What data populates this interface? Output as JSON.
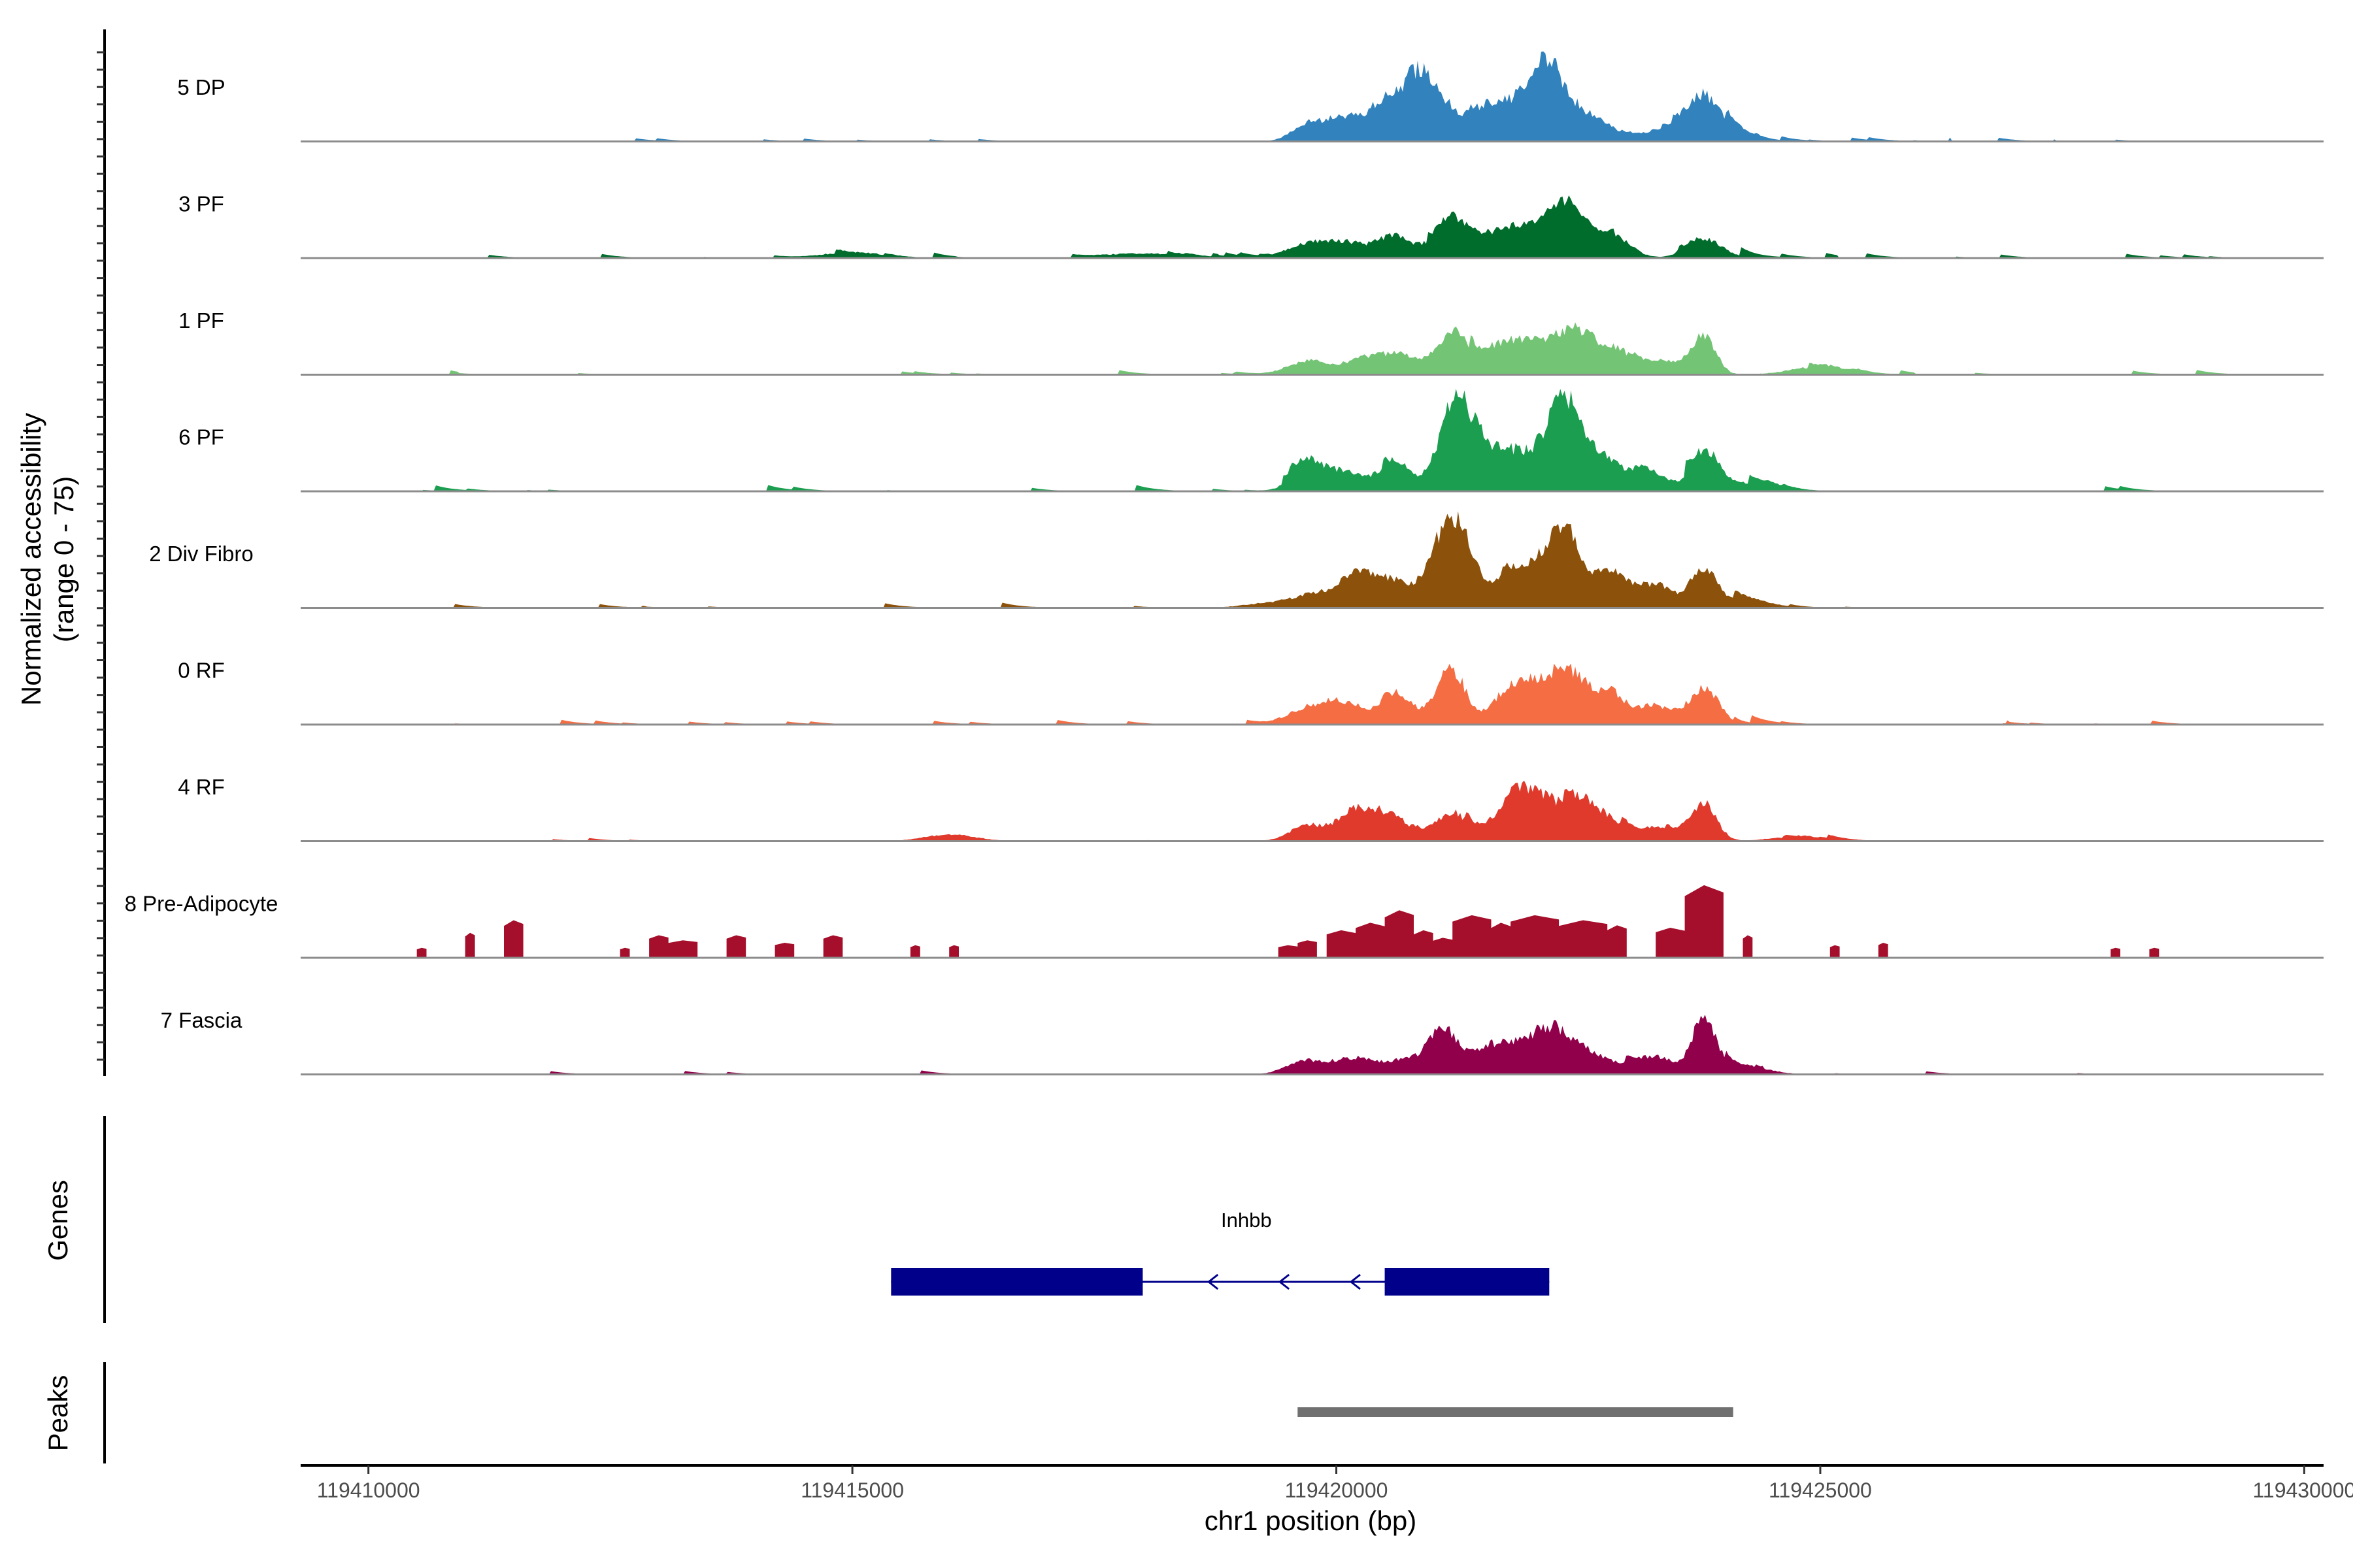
{
  "chart_data": {
    "type": "area",
    "title": "",
    "ylabel_line1": "Normalized accessibility",
    "ylabel_line2": "(range 0 - 75)",
    "y_range": [
      0,
      75
    ],
    "xlabel": "chr1 position (bp)",
    "xlim": [
      119409300,
      119430200
    ],
    "x_ticks": [
      119410000,
      119415000,
      119420000,
      119425000,
      119430000
    ],
    "x_tick_labels": [
      "119410000",
      "119415000",
      "119420000",
      "119425000",
      "119430000"
    ],
    "signal_span": [
      119410500,
      119429200
    ],
    "series": [
      {
        "name": "5 DP",
        "color": "#3182bd",
        "seed": 11,
        "scale": 0.62,
        "noise": 0.045,
        "peaks": [
          [
            119419700,
            14,
            160
          ],
          [
            119420100,
            22,
            200
          ],
          [
            119420500,
            30,
            150
          ],
          [
            119420850,
            47,
            170
          ],
          [
            119421100,
            23,
            220
          ],
          [
            119421600,
            26,
            200
          ],
          [
            119422000,
            34,
            200
          ],
          [
            119422200,
            38,
            140
          ],
          [
            119422500,
            27,
            260
          ],
          [
            119423400,
            10,
            300
          ],
          [
            119423800,
            33,
            160
          ],
          [
            119424100,
            8,
            200
          ]
        ]
      },
      {
        "name": "3 PF",
        "color": "#006d2c",
        "seed": 23,
        "scale": 0.62,
        "noise": 0.055,
        "peaks": [
          [
            119419700,
            12,
            200
          ],
          [
            119420100,
            13,
            200
          ],
          [
            119420600,
            20,
            180
          ],
          [
            119421200,
            33,
            180
          ],
          [
            119421700,
            22,
            220
          ],
          [
            119422100,
            26,
            200
          ],
          [
            119422400,
            40,
            150
          ],
          [
            119422800,
            24,
            200
          ],
          [
            119423800,
            16,
            180
          ],
          [
            119415000,
            5,
            300
          ],
          [
            119418000,
            4,
            400
          ]
        ]
      },
      {
        "name": "1 PF",
        "color": "#74c476",
        "seed": 37,
        "scale": 0.62,
        "noise": 0.05,
        "peaks": [
          [
            119419700,
            12,
            200
          ],
          [
            119420300,
            14,
            220
          ],
          [
            119420700,
            15,
            200
          ],
          [
            119421200,
            38,
            150
          ],
          [
            119421700,
            24,
            220
          ],
          [
            119422100,
            25,
            200
          ],
          [
            119422500,
            35,
            180
          ],
          [
            119422900,
            20,
            180
          ],
          [
            119423400,
            12,
            200
          ],
          [
            119423800,
            34,
            120
          ],
          [
            119425000,
            7,
            300
          ]
        ]
      },
      {
        "name": "6 PF",
        "color": "#1b9e4f",
        "seed": 41,
        "scale": 0.62,
        "noise": 0.065,
        "peaks": [
          [
            119419700,
            22,
            160
          ],
          [
            119420100,
            17,
            200
          ],
          [
            119420600,
            25,
            150
          ],
          [
            119421200,
            53,
            170
          ],
          [
            119421400,
            38,
            180
          ],
          [
            119421800,
            33,
            180
          ],
          [
            119422200,
            42,
            160
          ],
          [
            119422400,
            55,
            140
          ],
          [
            119422700,
            32,
            180
          ],
          [
            119423200,
            20,
            200
          ],
          [
            119423800,
            30,
            140
          ],
          [
            119424300,
            6,
            250
          ]
        ]
      },
      {
        "name": "2 Div Fibro",
        "color": "#8c510a",
        "seed": 53,
        "scale": 0.62,
        "noise": 0.05,
        "peaks": [
          [
            119419400,
            5,
            300
          ],
          [
            119419800,
            10,
            200
          ],
          [
            119420200,
            28,
            170
          ],
          [
            119420600,
            22,
            170
          ],
          [
            119421100,
            53,
            170
          ],
          [
            119421300,
            45,
            150
          ],
          [
            119421800,
            30,
            200
          ],
          [
            119422200,
            38,
            170
          ],
          [
            119422400,
            48,
            140
          ],
          [
            119422800,
            30,
            180
          ],
          [
            119423300,
            20,
            200
          ],
          [
            119423800,
            30,
            130
          ],
          [
            119424200,
            6,
            250
          ]
        ]
      },
      {
        "name": "0 RF",
        "color": "#f46d43",
        "seed": 67,
        "scale": 0.62,
        "noise": 0.045,
        "peaks": [
          [
            119419700,
            14,
            200
          ],
          [
            119420100,
            18,
            200
          ],
          [
            119420600,
            26,
            150
          ],
          [
            119421000,
            9,
            200
          ],
          [
            119421200,
            44,
            140
          ],
          [
            119421800,
            30,
            180
          ],
          [
            119422100,
            26,
            180
          ],
          [
            119422400,
            42,
            170
          ],
          [
            119422800,
            26,
            180
          ],
          [
            119423300,
            16,
            180
          ],
          [
            119423800,
            32,
            150
          ]
        ]
      },
      {
        "name": "4 RF",
        "color": "#e03a2d",
        "seed": 79,
        "scale": 0.62,
        "noise": 0.045,
        "peaks": [
          [
            119419700,
            14,
            180
          ],
          [
            119420200,
            28,
            180
          ],
          [
            119420600,
            18,
            180
          ],
          [
            119421200,
            25,
            170
          ],
          [
            119421800,
            32,
            170
          ],
          [
            119422100,
            36,
            180
          ],
          [
            119422500,
            30,
            170
          ],
          [
            119422800,
            16,
            200
          ],
          [
            119423400,
            12,
            200
          ],
          [
            119423800,
            32,
            130
          ],
          [
            119416000,
            6,
            250
          ],
          [
            119424800,
            4,
            300
          ]
        ]
      },
      {
        "name": "8 Pre-Adipocyte",
        "color": "#a50f2b",
        "seed": 91,
        "scale": 0.66,
        "noise": 0.0,
        "blocks": [
          [
            119410500,
            119410600,
            8
          ],
          [
            119411000,
            119411100,
            20
          ],
          [
            119411400,
            119411600,
            30
          ],
          [
            119412600,
            119412700,
            8
          ],
          [
            119412900,
            119413100,
            18
          ],
          [
            119413100,
            119413400,
            14
          ],
          [
            119413700,
            119413900,
            18
          ],
          [
            119414200,
            119414400,
            12
          ],
          [
            119414700,
            119414900,
            18
          ],
          [
            119415600,
            119415700,
            10
          ],
          [
            119416000,
            119416100,
            10
          ],
          [
            119419400,
            119419600,
            10
          ],
          [
            119419600,
            119419800,
            14
          ],
          [
            119419900,
            119420200,
            22
          ],
          [
            119420200,
            119420500,
            28
          ],
          [
            119420500,
            119420800,
            38
          ],
          [
            119420800,
            119421000,
            22
          ],
          [
            119421000,
            119421200,
            16
          ],
          [
            119421200,
            119421600,
            34
          ],
          [
            119421600,
            119421800,
            28
          ],
          [
            119421800,
            119422300,
            34
          ],
          [
            119422300,
            119422800,
            30
          ],
          [
            119422800,
            119423000,
            26
          ],
          [
            119423300,
            119423600,
            24
          ],
          [
            119423600,
            119424000,
            58
          ],
          [
            119424200,
            119424300,
            18
          ],
          [
            119425100,
            119425200,
            10
          ],
          [
            119425600,
            119425700,
            12
          ],
          [
            119428000,
            119428100,
            8
          ],
          [
            119428400,
            119428500,
            8
          ]
        ]
      },
      {
        "name": "7 Fascia",
        "color": "#91004b",
        "seed": 103,
        "scale": 0.62,
        "noise": 0.04,
        "peaks": [
          [
            119419700,
            12,
            200
          ],
          [
            119420200,
            14,
            200
          ],
          [
            119420700,
            12,
            200
          ],
          [
            119421100,
            38,
            150
          ],
          [
            119421600,
            24,
            200
          ],
          [
            119422000,
            22,
            200
          ],
          [
            119422300,
            32,
            200
          ],
          [
            119422700,
            14,
            200
          ],
          [
            119423300,
            14,
            200
          ],
          [
            119423800,
            50,
            120
          ],
          [
            119424200,
            6,
            250
          ]
        ]
      }
    ],
    "genes": [
      {
        "name": "Inhbb",
        "strand": "-",
        "start": 119415400,
        "end": 119422200,
        "exons": [
          [
            119415400,
            119418000
          ],
          [
            119420500,
            119422200
          ]
        ]
      }
    ],
    "peaks": [
      [
        119419600,
        119424100
      ]
    ],
    "panel_labels": {
      "genes": "Genes",
      "peaks": "Peaks"
    }
  }
}
